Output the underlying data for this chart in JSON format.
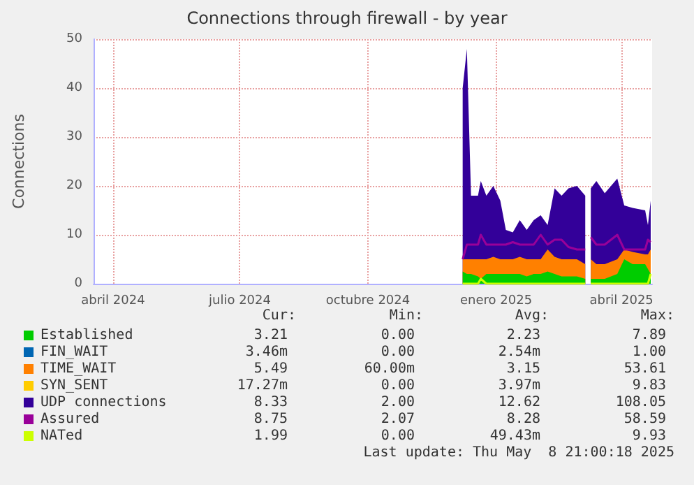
{
  "chart_data": {
    "type": "area",
    "title": "Connections through firewall - by year",
    "ylabel": "Connections",
    "stacked": true,
    "legend": "bottom",
    "grid": true,
    "marker": "none",
    "line_style": "solid",
    "x": [
      "2024-12-08",
      "2024-12-11",
      "2024-12-14",
      "2024-12-19",
      "2024-12-21",
      "2024-12-25",
      "2024-12-30",
      "2025-01-04",
      "2025-01-08",
      "2025-01-13",
      "2025-01-18",
      "2025-01-23",
      "2025-01-28",
      "2025-02-02",
      "2025-02-07",
      "2025-02-12",
      "2025-02-17",
      "2025-02-22",
      "2025-02-28",
      "2025-03-06",
      "2025-03-08",
      "2025-03-10",
      "2025-03-14",
      "2025-03-20",
      "2025-03-29",
      "2025-04-03",
      "2025-04-09",
      "2025-04-18",
      "2025-04-20",
      "2025-04-22"
    ],
    "xlim": [
      "2024-03-18",
      "2025-04-23"
    ],
    "xticks": [
      {
        "value": "2024-04-01",
        "label": "abril 2024"
      },
      {
        "value": "2024-07-01",
        "label": "julio 2024"
      },
      {
        "value": "2024-10-01",
        "label": "octubre 2024"
      },
      {
        "value": "2025-01-01",
        "label": "enero 2025"
      },
      {
        "value": "2025-04-01",
        "label": "abril 2025"
      }
    ],
    "ylim": [
      0,
      50
    ],
    "yticks": [
      0,
      10,
      20,
      30,
      40,
      50
    ],
    "series": [
      {
        "name": "Established",
        "color": "#00cc00",
        "values": [
          2.5,
          2,
          2,
          1.5,
          1,
          2,
          2,
          2,
          2,
          2,
          2,
          1.5,
          2,
          2,
          2.5,
          2,
          1.5,
          1.5,
          1.5,
          1,
          null,
          1,
          1,
          1,
          2,
          5,
          4,
          4,
          3,
          2
        ]
      },
      {
        "name": "FIN_WAIT",
        "color": "#0066b3",
        "values": [
          null,
          null,
          null,
          null,
          null,
          null,
          null,
          null,
          null,
          null,
          null,
          null,
          null,
          null,
          null,
          null,
          null,
          null,
          null,
          null,
          null,
          null,
          null,
          null,
          null,
          null,
          null,
          null,
          null,
          null
        ]
      },
      {
        "name": "TIME_WAIT",
        "color": "#ff8000",
        "values": [
          2.5,
          3,
          3,
          3.5,
          4,
          3,
          3.5,
          3,
          3,
          3,
          3.5,
          3.5,
          3,
          3,
          4.5,
          3.5,
          3.5,
          3.5,
          3.5,
          3,
          null,
          4,
          3,
          3,
          3,
          2,
          2.5,
          2,
          3,
          5
        ]
      },
      {
        "name": "SYN_SENT",
        "color": "#ffcc00",
        "values": [
          null,
          null,
          null,
          null,
          null,
          null,
          null,
          null,
          null,
          null,
          null,
          null,
          null,
          null,
          null,
          null,
          null,
          null,
          null,
          null,
          null,
          null,
          null,
          null,
          null,
          null,
          null,
          null,
          null,
          null
        ]
      },
      {
        "name": "UDP connections",
        "color": "#330099",
        "values": [
          35,
          43,
          13,
          13,
          16,
          13,
          14.5,
          12,
          6,
          5.5,
          7.5,
          6,
          8,
          9,
          5,
          14,
          13,
          14.5,
          15,
          14,
          null,
          14.5,
          17,
          14.5,
          16.5,
          9,
          9,
          9,
          6,
          10
        ]
      },
      {
        "name": "Assured",
        "type": "line",
        "color": "#990099",
        "values": [
          5,
          8,
          8,
          8,
          10,
          8,
          8,
          8,
          8,
          8.5,
          8,
          8,
          8,
          10,
          8,
          9,
          9,
          7.5,
          7,
          7,
          null,
          9.5,
          8,
          8,
          10,
          7,
          7,
          7,
          9,
          8.5
        ]
      },
      {
        "name": "NATed",
        "type": "line",
        "color": "#ccff00",
        "values": [
          0,
          0,
          0,
          0,
          1,
          0,
          0,
          0,
          0,
          0,
          0,
          0,
          0,
          0,
          0,
          0,
          0,
          0,
          0,
          0,
          null,
          0,
          0,
          0,
          0,
          0,
          0,
          0,
          0,
          2
        ]
      }
    ],
    "annotations": [
      "Cur:",
      "Min:",
      "Avg:",
      "Max:",
      "3.21",
      "0.00",
      "2.23",
      "7.89",
      "3.46m",
      "0.00",
      "2.54m",
      "1.00",
      "5.49",
      "60.00m",
      "3.15",
      "53.61",
      "17.27m",
      "0.00",
      "3.97m",
      "9.83",
      "8.33",
      "2.00",
      "12.62",
      "108.05",
      "8.75",
      "2.07",
      "8.28",
      "58.59",
      "1.99",
      "0.00",
      "49.43m",
      "9.93",
      "Last update: Thu May  8 21:00:18 2025"
    ]
  }
}
